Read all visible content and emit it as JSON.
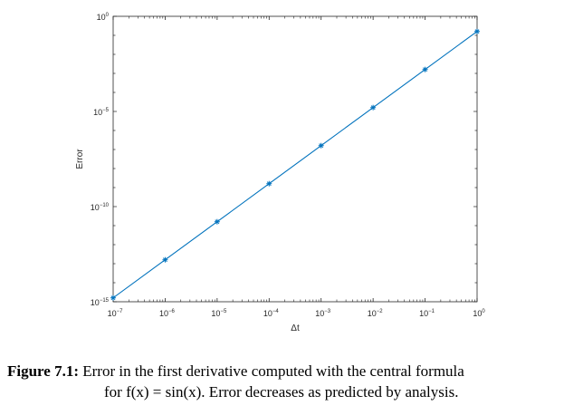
{
  "chart_data": {
    "type": "line",
    "xscale": "log",
    "yscale": "log",
    "xlim": [
      1e-07,
      1
    ],
    "ylim": [
      1e-15,
      1
    ],
    "xlabel": "Δt",
    "ylabel": "Error",
    "x_ticks": [
      {
        "base": "10",
        "exp": "−7",
        "value": 1e-07
      },
      {
        "base": "10",
        "exp": "−6",
        "value": 1e-06
      },
      {
        "base": "10",
        "exp": "−5",
        "value": 1e-05
      },
      {
        "base": "10",
        "exp": "−4",
        "value": 0.0001
      },
      {
        "base": "10",
        "exp": "−3",
        "value": 0.001
      },
      {
        "base": "10",
        "exp": "−2",
        "value": 0.01
      },
      {
        "base": "10",
        "exp": "−1",
        "value": 0.1
      },
      {
        "base": "10",
        "exp": "0",
        "value": 1
      }
    ],
    "y_ticks": [
      {
        "base": "10",
        "exp": "0",
        "value": 1
      },
      {
        "base": "10",
        "exp": "−5",
        "value": 1e-05
      },
      {
        "base": "10",
        "exp": "−10",
        "value": 1e-10
      },
      {
        "base": "10",
        "exp": "−15",
        "value": 1e-15
      }
    ],
    "series": [
      {
        "color": "#0072bd",
        "marker": "asterisk",
        "points": [
          {
            "x": 1e-07,
            "y": 1.6e-15
          },
          {
            "x": 1e-06,
            "y": 1.6e-13
          },
          {
            "x": 1e-05,
            "y": 1.6e-11
          },
          {
            "x": 0.0001,
            "y": 1.6e-09
          },
          {
            "x": 0.001,
            "y": 1.6e-07
          },
          {
            "x": 0.01,
            "y": 1.6e-05
          },
          {
            "x": 0.1,
            "y": 0.0016
          },
          {
            "x": 1,
            "y": 0.16
          }
        ]
      }
    ],
    "grid": false
  },
  "caption": {
    "label": "Figure 7.1:",
    "line1": "Error in the first derivative computed with the central formula",
    "line2": "for f(x) = sin(x). Error decreases as predicted by analysis."
  }
}
